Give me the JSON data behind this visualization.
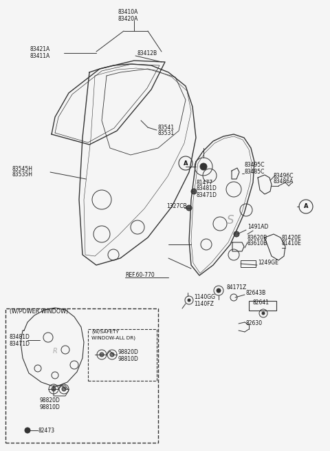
{
  "bg_color": "#f5f5f5",
  "line_color": "#333333",
  "text_color": "#111111",
  "fs": 6.0,
  "fig_w": 4.8,
  "fig_h": 6.55,
  "dpi": 100,
  "xlim": [
    0,
    480
  ],
  "ylim": [
    0,
    655
  ]
}
